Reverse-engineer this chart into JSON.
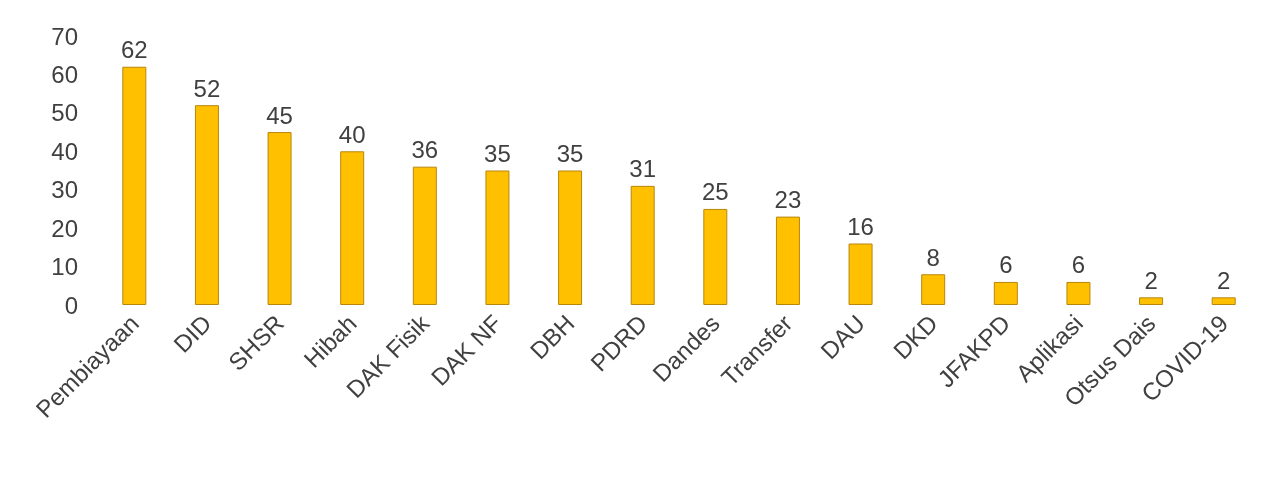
{
  "chart_data": {
    "type": "bar",
    "categories": [
      "Pembiayaan",
      "DID",
      "SHSR",
      "Hibah",
      "DAK Fisik",
      "DAK NF",
      "DBH",
      "PDRD",
      "Dandes",
      "Transfer",
      "DAU",
      "DKD",
      "JFAKPD",
      "Aplikasi",
      "Otsus Dais",
      "COVID-19"
    ],
    "values": [
      62,
      52,
      45,
      40,
      36,
      35,
      35,
      31,
      25,
      23,
      16,
      8,
      6,
      6,
      2,
      2
    ],
    "color": "#ffc000",
    "ylim": [
      0,
      70
    ],
    "yticks": [
      0,
      10,
      20,
      30,
      40,
      50,
      60,
      70
    ],
    "grid": false,
    "data_labels": true
  }
}
